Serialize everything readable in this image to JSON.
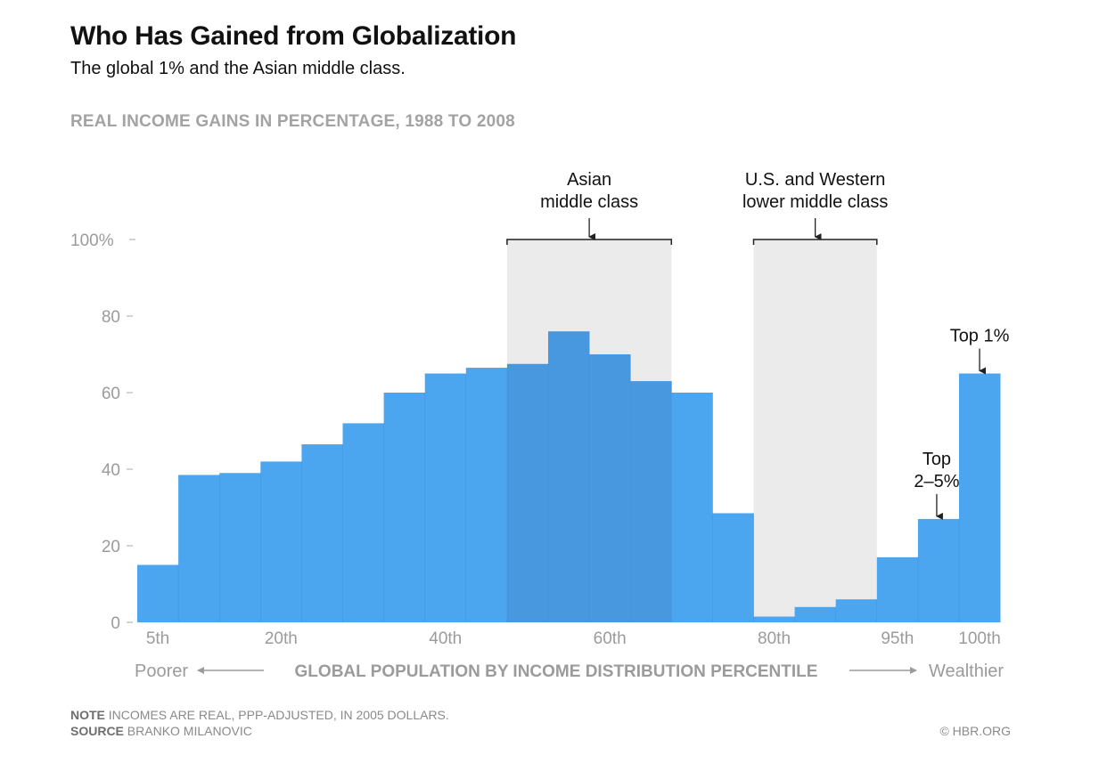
{
  "chart_data": {
    "type": "bar",
    "title": "Who Has Gained from Globalization",
    "subtitle": "The global 1% and the Asian middle class.",
    "ylabel": "REAL INCOME GAINS IN PERCENTAGE, 1988 TO 2008",
    "xlabel": "GLOBAL POPULATION BY INCOME DISTRIBUTION PERCENTILE",
    "xlabel_left": "Poorer",
    "xlabel_right": "Wealthier",
    "ylim": [
      0,
      100
    ],
    "yticks": [
      {
        "value": 0,
        "label": "0"
      },
      {
        "value": 20,
        "label": "20"
      },
      {
        "value": 40,
        "label": "40"
      },
      {
        "value": 60,
        "label": "60"
      },
      {
        "value": 80,
        "label": "80"
      },
      {
        "value": 100,
        "label": "100%"
      }
    ],
    "xticks": [
      {
        "bar": 0,
        "label": "5th"
      },
      {
        "bar": 3,
        "label": "20th"
      },
      {
        "bar": 7,
        "label": "40th"
      },
      {
        "bar": 11,
        "label": "60th"
      },
      {
        "bar": 15,
        "label": "80th"
      },
      {
        "bar": 18,
        "label": "95th"
      },
      {
        "bar": 20,
        "label": "100th"
      }
    ],
    "values": [
      15,
      38.5,
      39,
      42,
      46.5,
      52,
      60,
      65,
      66.5,
      67.5,
      76,
      70,
      63,
      60,
      28.5,
      1.5,
      4,
      6,
      17,
      27,
      65
    ],
    "highlight_groups": [
      {
        "first_bar": 9,
        "last_bar": 12,
        "label_lines": [
          "Asian",
          "middle class"
        ]
      },
      {
        "first_bar": 15,
        "last_bar": 17,
        "label_lines": [
          "U.S. and Western",
          "lower middle class"
        ]
      }
    ],
    "annotations": [
      {
        "bar": 19,
        "label_lines": [
          "Top",
          "2–5%"
        ]
      },
      {
        "bar": 20,
        "label_lines": [
          "Top 1%"
        ]
      }
    ],
    "grid": false,
    "legend": "none"
  },
  "footer": {
    "note_label": "NOTE",
    "note_text": "INCOMES ARE REAL, PPP-ADJUSTED, IN 2005 DOLLARS.",
    "source_label": "SOURCE",
    "source_text": "BRANKO MILANOVIC",
    "credit": "© HBR.ORG"
  },
  "colors": {
    "bar": "#4ba5ef",
    "bar_highlight": "#4898e0",
    "band": "#ebebeb",
    "axis_text": "#9b9b9b"
  }
}
